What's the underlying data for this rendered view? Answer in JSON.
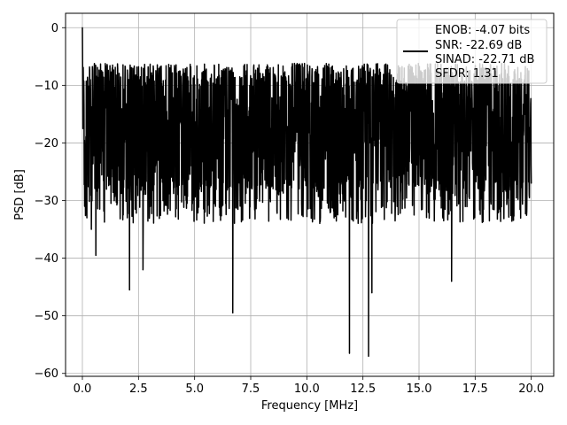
{
  "chart_data": {
    "type": "line",
    "xlabel": "Frequency [MHz]",
    "ylabel": "PSD [dB]",
    "xlim": [
      -0.75,
      21.0
    ],
    "ylim": [
      -60.5,
      2.5
    ],
    "xticks": [
      0.0,
      2.5,
      5.0,
      7.5,
      10.0,
      12.5,
      15.0,
      17.5,
      20.0
    ],
    "xtick_labels": [
      "0.0",
      "2.5",
      "5.0",
      "7.5",
      "10.0",
      "12.5",
      "15.0",
      "17.5",
      "20.0"
    ],
    "yticks": [
      0,
      -10,
      -20,
      -30,
      -40,
      -50,
      -60
    ],
    "ytick_labels": [
      "0",
      "−10",
      "−20",
      "−30",
      "−40",
      "−50",
      "−60"
    ],
    "grid": true,
    "legend": {
      "placement": "top-right",
      "lines": [
        "ENOB: -4.07 bits",
        "SNR: -22.69 dB",
        "SINAD: -22.71 dB",
        "SFDR: 1.31"
      ]
    },
    "series": [
      {
        "color": "#000000",
        "noise_floor_center": -19,
        "noise_band": [
          -30,
          -9
        ],
        "x": [
          0.0,
          0.02,
          0.05,
          0.1,
          0.2,
          0.4,
          0.6,
          2.1,
          2.7,
          6.7,
          11.9,
          12.75,
          12.9,
          16.45,
          20.0
        ],
        "y": [
          0.0,
          -17.5,
          -12.0,
          -31.0,
          -33.0,
          -35.0,
          -39.5,
          -45.5,
          -42.0,
          -49.5,
          -56.5,
          -57.0,
          -46.0,
          -44.0,
          -27.0
        ]
      }
    ]
  }
}
